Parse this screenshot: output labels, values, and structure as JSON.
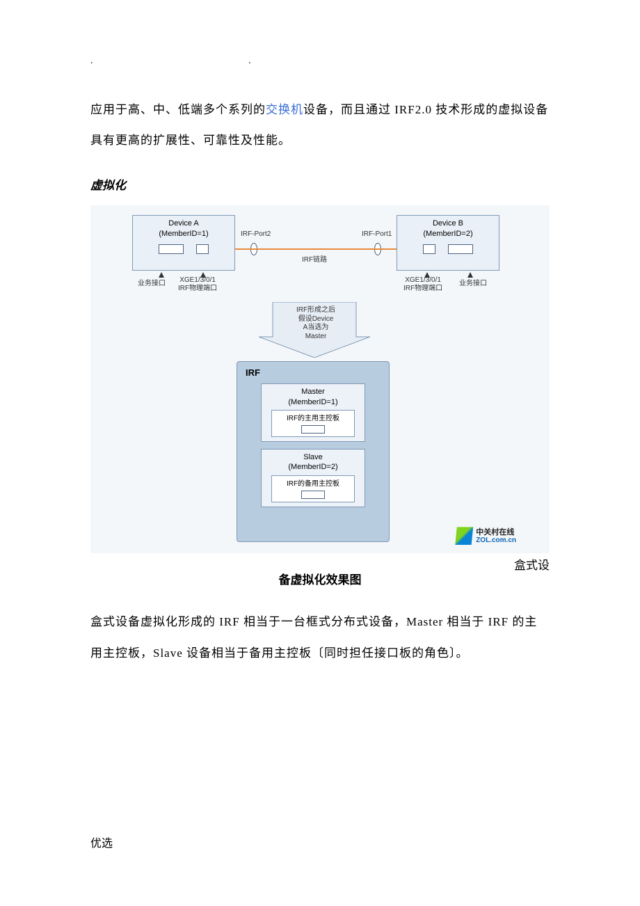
{
  "header_dots": ".  .",
  "para1_a": "应用于高、中、低端多个系列的",
  "para1_link": "交换机",
  "para1_b": "设备，而且通过 IRF2.0 技术形成的虚拟设备具有更高的扩展性、可靠性及性能。",
  "heading": "虚拟化",
  "diagram": {
    "deviceA": {
      "title1": "Device A",
      "title2": "(MemberID=1)"
    },
    "deviceB": {
      "title1": "Device B",
      "title2": "(MemberID=2)"
    },
    "irf_port2": "IRF-Port2",
    "irf_port1": "IRF-Port1",
    "irf_link": "IRF链路",
    "biz_port": "业务接口",
    "xge": "XGE1/3/0/1",
    "phys": "IRF物理端口",
    "after_text": "IRF形成之后\n假设Device\nA当选为\nMaster",
    "irf_title": "IRF",
    "master": {
      "t1": "Master",
      "t2": "(MemberID=1)",
      "sub": "IRF的主用主控板"
    },
    "slave": {
      "t1": "Slave",
      "t2": "(MemberID=2)",
      "sub": "IRF的备用主控板"
    },
    "zol_cn": "中关村在线",
    "zol_en": "ZOL.com.cn",
    "colors": {
      "panel_bg": "#f4f7fa",
      "box_bg": "#eaf0f7",
      "box_border": "#7f99b5",
      "stack_bg": "#b8cce0",
      "link_color": "#e88b3a"
    }
  },
  "caption_inline": "盒式设",
  "caption_center": "备虚拟化效果图",
  "para2": "盒式设备虚拟化形成的 IRF 相当于一台框式分布式设备，Master 相当于 IRF 的主用主控板，Slave 设备相当于备用主控板〔同时担任接口板的角色〕。",
  "footer": "优选"
}
